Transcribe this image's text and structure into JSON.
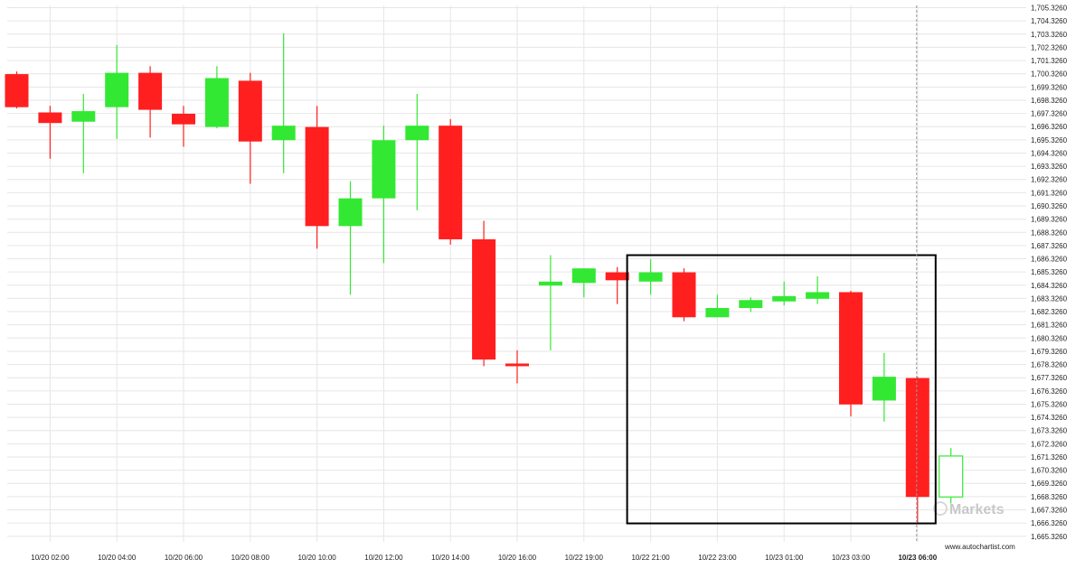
{
  "chart_data": {
    "type": "candlestick",
    "y_ticks": [
      "1,665.3260",
      "1,666.3260",
      "1,667.3260",
      "1,668.3260",
      "1,669.3260",
      "1,670.3260",
      "1,671.3260",
      "1,672.3260",
      "1,673.3260",
      "1,674.3260",
      "1,675.3260",
      "1,676.3260",
      "1,677.3260",
      "1,678.3260",
      "1,679.3260",
      "1,680.3260",
      "1,681.3260",
      "1,682.3260",
      "1,683.3260",
      "1,684.3260",
      "1,685.3260",
      "1,686.3260",
      "1,687.3260",
      "1,688.3260",
      "1,689.3260",
      "1,690.3260",
      "1,691.3260",
      "1,692.3260",
      "1,693.3260",
      "1,694.3260",
      "1,695.3260",
      "1,696.3260",
      "1,697.3260",
      "1,698.3260",
      "1,699.3260",
      "1,700.3260",
      "1,701.3260",
      "1,702.3260",
      "1,703.3260",
      "1,704.3260",
      "1,705.3260"
    ],
    "y_tick_values": [
      1665.326,
      1666.326,
      1667.326,
      1668.326,
      1669.326,
      1670.326,
      1671.326,
      1672.326,
      1673.326,
      1674.326,
      1675.326,
      1676.326,
      1677.326,
      1678.326,
      1679.326,
      1680.326,
      1681.326,
      1682.326,
      1683.326,
      1684.326,
      1685.326,
      1686.326,
      1687.326,
      1688.326,
      1689.326,
      1690.326,
      1691.326,
      1692.326,
      1693.326,
      1694.326,
      1695.326,
      1696.326,
      1697.326,
      1698.326,
      1699.326,
      1700.326,
      1701.326,
      1702.326,
      1703.326,
      1704.326,
      1705.326
    ],
    "ylim": [
      1664.9,
      1705.5
    ],
    "x_ticks": [
      {
        "label": "10/20 02:00",
        "index": 1
      },
      {
        "label": "10/20 04:00",
        "index": 3
      },
      {
        "label": "10/20 06:00",
        "index": 5
      },
      {
        "label": "10/20 08:00",
        "index": 7
      },
      {
        "label": "10/20 10:00",
        "index": 9
      },
      {
        "label": "10/20 12:00",
        "index": 11
      },
      {
        "label": "10/20 14:00",
        "index": 13
      },
      {
        "label": "10/20 16:00",
        "index": 15
      },
      {
        "label": "10/22 19:00",
        "index": 17
      },
      {
        "label": "10/22 21:00",
        "index": 19
      },
      {
        "label": "10/22 23:00",
        "index": 21
      },
      {
        "label": "10/23 01:00",
        "index": 23
      },
      {
        "label": "10/23 03:00",
        "index": 25
      },
      {
        "label": "10/23 06:00",
        "index": 27,
        "bold": true
      }
    ],
    "candles": [
      {
        "o": 1700.3,
        "h": 1700.5,
        "l": 1697.7,
        "c": 1697.8
      },
      {
        "o": 1697.4,
        "h": 1697.9,
        "l": 1693.9,
        "c": 1696.6
      },
      {
        "o": 1696.7,
        "h": 1698.8,
        "l": 1692.8,
        "c": 1697.5
      },
      {
        "o": 1697.8,
        "h": 1702.5,
        "l": 1695.4,
        "c": 1700.4
      },
      {
        "o": 1700.4,
        "h": 1700.9,
        "l": 1695.5,
        "c": 1697.6
      },
      {
        "o": 1697.3,
        "h": 1697.9,
        "l": 1694.8,
        "c": 1696.5
      },
      {
        "o": 1696.3,
        "h": 1700.9,
        "l": 1696.2,
        "c": 1700.0
      },
      {
        "o": 1699.8,
        "h": 1700.4,
        "l": 1692.0,
        "c": 1695.2
      },
      {
        "o": 1695.3,
        "h": 1703.4,
        "l": 1692.8,
        "c": 1696.4
      },
      {
        "o": 1696.3,
        "h": 1697.9,
        "l": 1687.1,
        "c": 1688.8
      },
      {
        "o": 1688.8,
        "h": 1692.2,
        "l": 1683.6,
        "c": 1690.9
      },
      {
        "o": 1690.9,
        "h": 1696.4,
        "l": 1686.0,
        "c": 1695.3
      },
      {
        "o": 1695.3,
        "h": 1698.8,
        "l": 1690.0,
        "c": 1696.4
      },
      {
        "o": 1696.4,
        "h": 1696.9,
        "l": 1687.4,
        "c": 1687.8
      },
      {
        "o": 1687.8,
        "h": 1689.2,
        "l": 1678.2,
        "c": 1678.7
      },
      {
        "o": 1678.4,
        "h": 1679.4,
        "l": 1676.9,
        "c": 1678.2
      },
      {
        "o": 1684.3,
        "h": 1686.6,
        "l": 1679.4,
        "c": 1684.6
      },
      {
        "o": 1684.5,
        "h": 1685.6,
        "l": 1683.4,
        "c": 1685.6
      },
      {
        "o": 1685.3,
        "h": 1685.7,
        "l": 1682.9,
        "c": 1684.7
      },
      {
        "o": 1684.6,
        "h": 1686.3,
        "l": 1683.6,
        "c": 1685.3
      },
      {
        "o": 1685.3,
        "h": 1685.6,
        "l": 1681.6,
        "c": 1681.9
      },
      {
        "o": 1681.9,
        "h": 1683.6,
        "l": 1681.9,
        "c": 1682.6
      },
      {
        "o": 1682.6,
        "h": 1683.4,
        "l": 1682.3,
        "c": 1683.2
      },
      {
        "o": 1683.1,
        "h": 1684.6,
        "l": 1682.8,
        "c": 1683.5
      },
      {
        "o": 1683.3,
        "h": 1685.0,
        "l": 1682.9,
        "c": 1683.8
      },
      {
        "o": 1683.8,
        "h": 1683.9,
        "l": 1674.4,
        "c": 1675.3
      },
      {
        "o": 1675.6,
        "h": 1679.2,
        "l": 1674.0,
        "c": 1677.4
      },
      {
        "o": 1677.3,
        "h": 1677.4,
        "l": 1666.3,
        "c": 1668.3
      },
      {
        "o": 1668.3,
        "h": 1672.0,
        "l": 1667.8,
        "c": 1671.4,
        "forming": true
      }
    ],
    "highlight_box": {
      "from_index": 19,
      "to_index": 27,
      "top": 1686.6,
      "bottom": 1666.3
    },
    "current_marker_index": 27,
    "colors": {
      "up": "#33e833",
      "down": "#ff1f1f",
      "grid": "#e6e6e6",
      "box": "#000000",
      "marker": "#999999"
    },
    "grid": true,
    "watermark_text": "Markets",
    "credit_text": "www.autochartist.com"
  }
}
